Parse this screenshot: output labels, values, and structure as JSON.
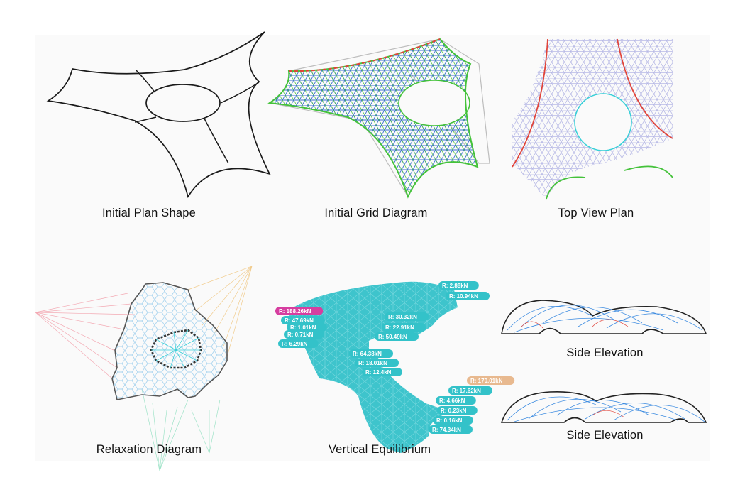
{
  "captions": {
    "p1": "Initial Plan Shape",
    "p2": "Initial Grid Diagram",
    "p3": "Top View Plan",
    "p4": "Relaxation Diagram",
    "p5": "Vertical Equilibrium",
    "p6": "Side Elevation",
    "p7": "Side Elevation"
  },
  "reaction_labels": [
    {
      "text": "R: 188.26kN",
      "color": "#d63ea0"
    },
    {
      "text": "R: 47.69kN",
      "color": "#33c2c9"
    },
    {
      "text": "R: 1.01kN",
      "color": "#33c2c9"
    },
    {
      "text": "R: 0.71kN",
      "color": "#33c2c9"
    },
    {
      "text": "R: 6.29kN",
      "color": "#33c2c9"
    },
    {
      "text": "R: 2.88kN",
      "color": "#33c2c9"
    },
    {
      "text": "R: 10.94kN",
      "color": "#33c2c9"
    },
    {
      "text": "R: 30.32kN",
      "color": "#33c2c9"
    },
    {
      "text": "R: 22.91kN",
      "color": "#33c2c9"
    },
    {
      "text": "R: 50.49kN",
      "color": "#33c2c9"
    },
    {
      "text": "R: 64.38kN",
      "color": "#33c2c9"
    },
    {
      "text": "R: 18.01kN",
      "color": "#33c2c9"
    },
    {
      "text": "R: 12.4kN",
      "color": "#33c2c9"
    },
    {
      "text": "R: 170.01kN",
      "color": "#e8b98f"
    },
    {
      "text": "R: 17.62kN",
      "color": "#33c2c9"
    },
    {
      "text": "R: 4.66kN",
      "color": "#33c2c9"
    },
    {
      "text": "R: 0.23kN",
      "color": "#33c2c9"
    },
    {
      "text": "R: 0.16kN",
      "color": "#33c2c9"
    },
    {
      "text": "R: 74.34kN",
      "color": "#33c2c9"
    }
  ],
  "colors": {
    "outline": "#1a1a1a",
    "grid_blue": "#3a6fd0",
    "grid_green": "#44c23a",
    "edge_red": "#e0443a",
    "mesh_light": "#b7b9e6",
    "cyan": "#38d0d8",
    "teal_fill": "#3ec4cc"
  }
}
